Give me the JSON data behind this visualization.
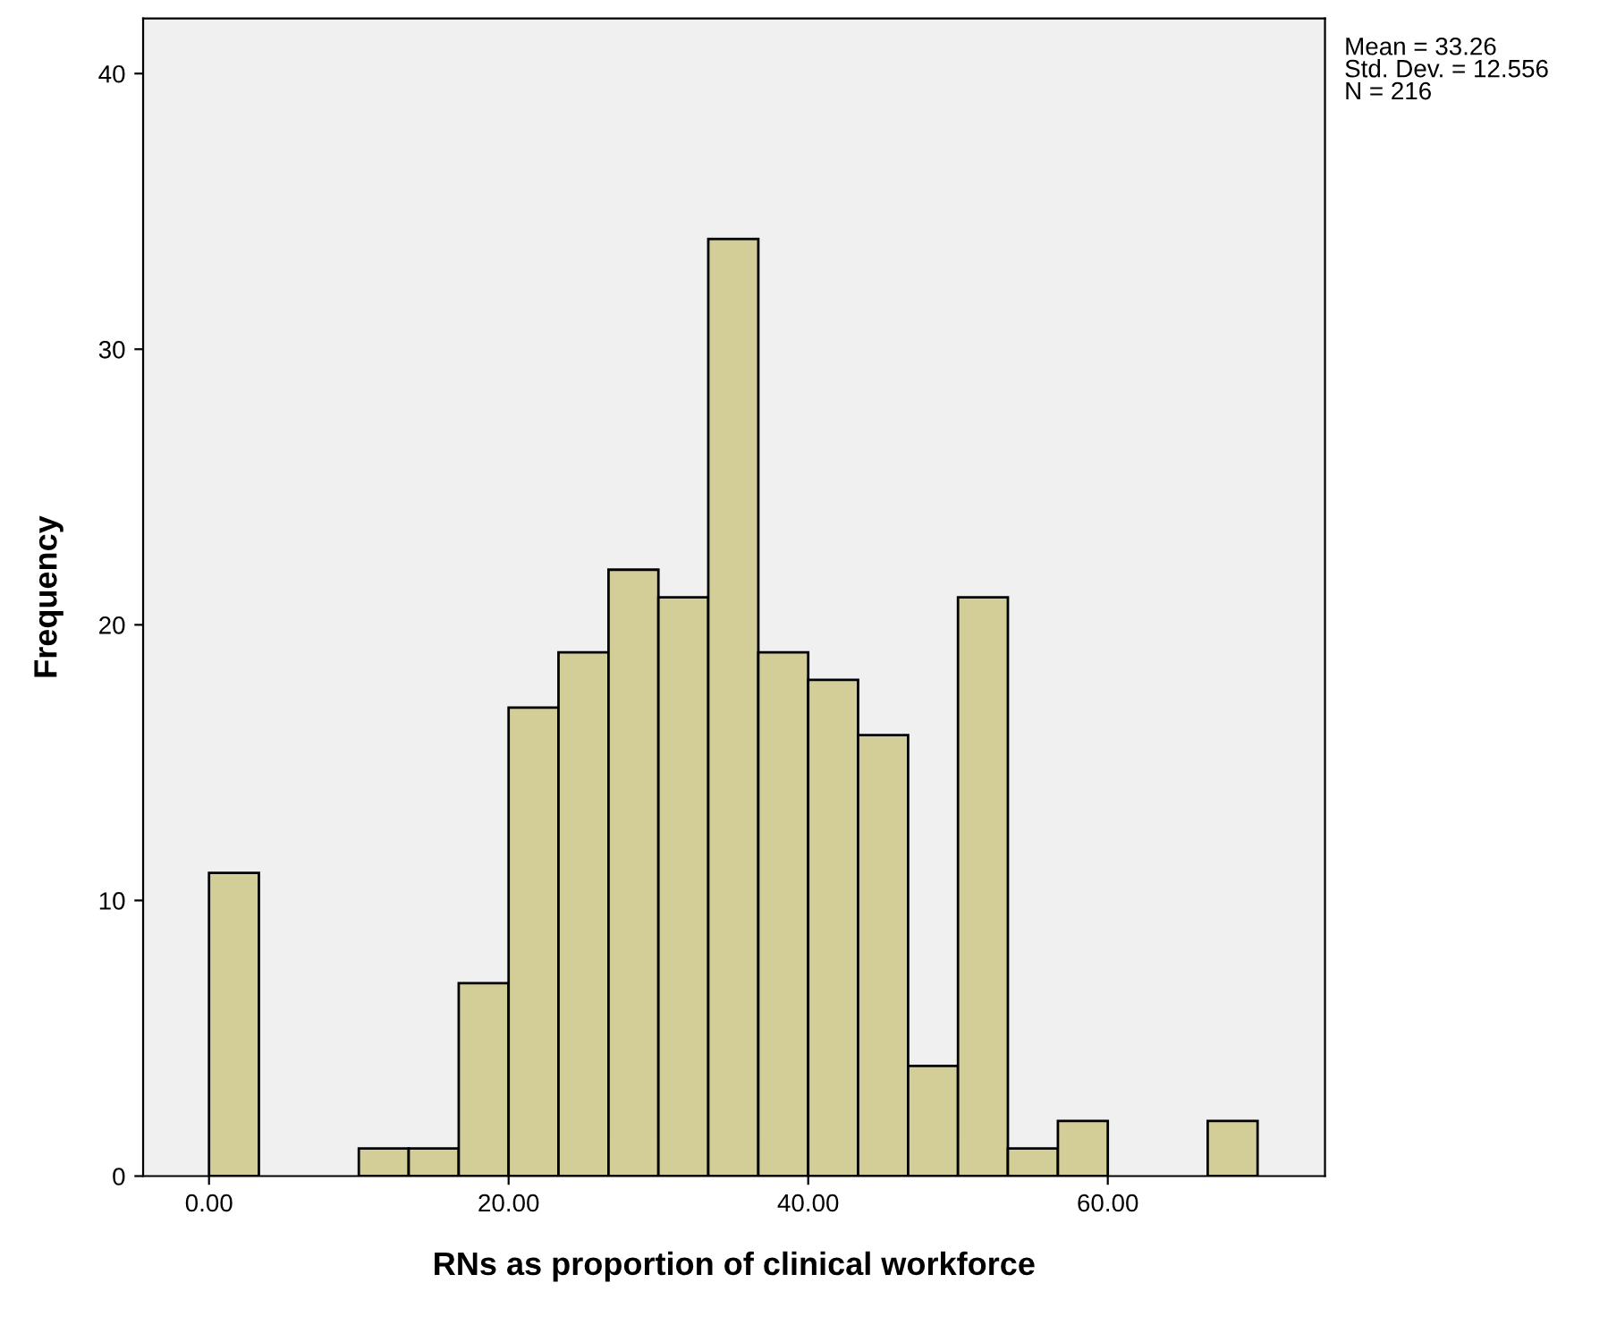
{
  "chart_data": {
    "type": "histogram",
    "xlabel": "RNs as proportion of clinical workforce",
    "ylabel": "Frequency",
    "bins": [
      0,
      3.33,
      6.67,
      10,
      13.33,
      16.67,
      20,
      23.33,
      26.67,
      30,
      33.33,
      36.67,
      40,
      43.33,
      46.67,
      50,
      53.33,
      56.67,
      60,
      63.33,
      66.67,
      70
    ],
    "values": [
      11,
      0,
      0,
      1,
      1,
      7,
      17,
      19,
      22,
      21,
      34,
      19,
      18,
      16,
      4,
      21,
      1,
      2,
      0,
      0,
      2
    ],
    "color": "#d3ce98",
    "xlim": [
      -4.4,
      74.5
    ],
    "xticks": [
      {
        "value": 0,
        "label": "0.00"
      },
      {
        "value": 20,
        "label": "20.00"
      },
      {
        "value": 40,
        "label": "40.00"
      },
      {
        "value": 60,
        "label": "60.00"
      }
    ],
    "ylim": [
      0,
      42
    ],
    "yticks": [
      0,
      10,
      20,
      30,
      40
    ],
    "annotations": [
      "Mean = 33.26\nStd. Dev. = 12.556\nN = 216"
    ],
    "grid": false
  }
}
